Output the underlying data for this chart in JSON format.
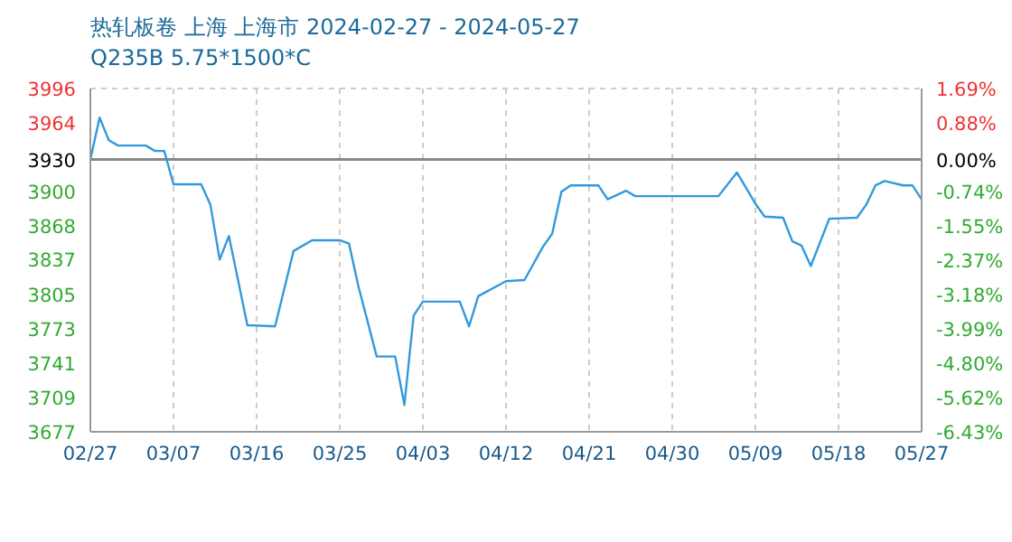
{
  "chart_data": {
    "type": "line",
    "title": "热轧板卷 上海 上海市 2024-02-27 - 2024-05-27",
    "subtitle": "Q235B 5.75*1500*C",
    "x": [
      "2024-02-27",
      "2024-02-28",
      "2024-02-29",
      "2024-03-01",
      "2024-03-04",
      "2024-03-05",
      "2024-03-06",
      "2024-03-07",
      "2024-03-10",
      "2024-03-11",
      "2024-03-12",
      "2024-03-13",
      "2024-03-15",
      "2024-03-18",
      "2024-03-19",
      "2024-03-20",
      "2024-03-22",
      "2024-03-25",
      "2024-03-26",
      "2024-03-27",
      "2024-03-29",
      "2024-03-31",
      "2024-04-01",
      "2024-04-02",
      "2024-04-03",
      "2024-04-07",
      "2024-04-08",
      "2024-04-09",
      "2024-04-12",
      "2024-04-14",
      "2024-04-16",
      "2024-04-17",
      "2024-04-18",
      "2024-04-19",
      "2024-04-22",
      "2024-04-23",
      "2024-04-25",
      "2024-04-26",
      "2024-05-05",
      "2024-05-07",
      "2024-05-09",
      "2024-05-10",
      "2024-05-12",
      "2024-05-13",
      "2024-05-14",
      "2024-05-15",
      "2024-05-17",
      "2024-05-20",
      "2024-05-21",
      "2024-05-22",
      "2024-05-23",
      "2024-05-25",
      "2024-05-26",
      "2024-05-27"
    ],
    "values": [
      3930,
      3969,
      3948,
      3943,
      3943,
      3938,
      3938,
      3907,
      3907,
      3888,
      3837,
      3859,
      3776,
      3775,
      3810,
      3845,
      3855,
      3855,
      3852,
      3813,
      3747,
      3747,
      3702,
      3785,
      3798,
      3798,
      3775,
      3803,
      3817,
      3818,
      3849,
      3861,
      3900,
      3906,
      3906,
      3893,
      3901,
      3896,
      3896,
      3918,
      3889,
      3877,
      3876,
      3854,
      3850,
      3831,
      3875,
      3876,
      3888,
      3906,
      3910,
      3906,
      3906,
      3893
    ],
    "color": "#3399dd",
    "marker": "none",
    "line_style": "solid",
    "xlim": [
      "2024-02-27",
      "2024-05-27"
    ],
    "xticks": [
      {
        "value": "2024-02-27",
        "label": "02/27"
      },
      {
        "value": "2024-03-07",
        "label": "03/07"
      },
      {
        "value": "2024-03-16",
        "label": "03/16"
      },
      {
        "value": "2024-03-25",
        "label": "03/25"
      },
      {
        "value": "2024-04-03",
        "label": "04/03"
      },
      {
        "value": "2024-04-12",
        "label": "04/12"
      },
      {
        "value": "2024-04-21",
        "label": "04/21"
      },
      {
        "value": "2024-04-30",
        "label": "04/30"
      },
      {
        "value": "2024-05-09",
        "label": "05/09"
      },
      {
        "value": "2024-05-18",
        "label": "05/18"
      },
      {
        "value": "2024-05-27",
        "label": "05/27"
      }
    ],
    "ylim": [
      3677,
      3996
    ],
    "yticks": [
      3677,
      3709,
      3741,
      3773,
      3805,
      3837,
      3868,
      3900,
      3930,
      3964,
      3996
    ],
    "y2lim": [
      -6.43,
      1.69
    ],
    "y2ticks": [
      {
        "value": -6.43,
        "label": "-6.43%"
      },
      {
        "value": -5.62,
        "label": "-5.62%"
      },
      {
        "value": -4.8,
        "label": "-4.80%"
      },
      {
        "value": -3.99,
        "label": "-3.99%"
      },
      {
        "value": -3.18,
        "label": "-3.18%"
      },
      {
        "value": -2.37,
        "label": "-2.37%"
      },
      {
        "value": -1.55,
        "label": "-1.55%"
      },
      {
        "value": -0.74,
        "label": "-0.74%"
      },
      {
        "value": 0,
        "label": "0.00%"
      },
      {
        "value": 0.88,
        "label": "0.88%"
      },
      {
        "value": 1.69,
        "label": "1.69%"
      }
    ],
    "ref_lines": [
      {
        "axis": "y",
        "value": 3930,
        "color": "#888888"
      }
    ],
    "grid": true
  }
}
